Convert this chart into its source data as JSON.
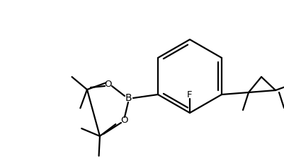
{
  "background": "#ffffff",
  "line_color": "#000000",
  "line_width": 1.6,
  "font_size": 9.5,
  "figsize": [
    4.02,
    2.24
  ],
  "dpi": 100,
  "xlim": [
    0,
    402
  ],
  "ylim": [
    0,
    224
  ]
}
